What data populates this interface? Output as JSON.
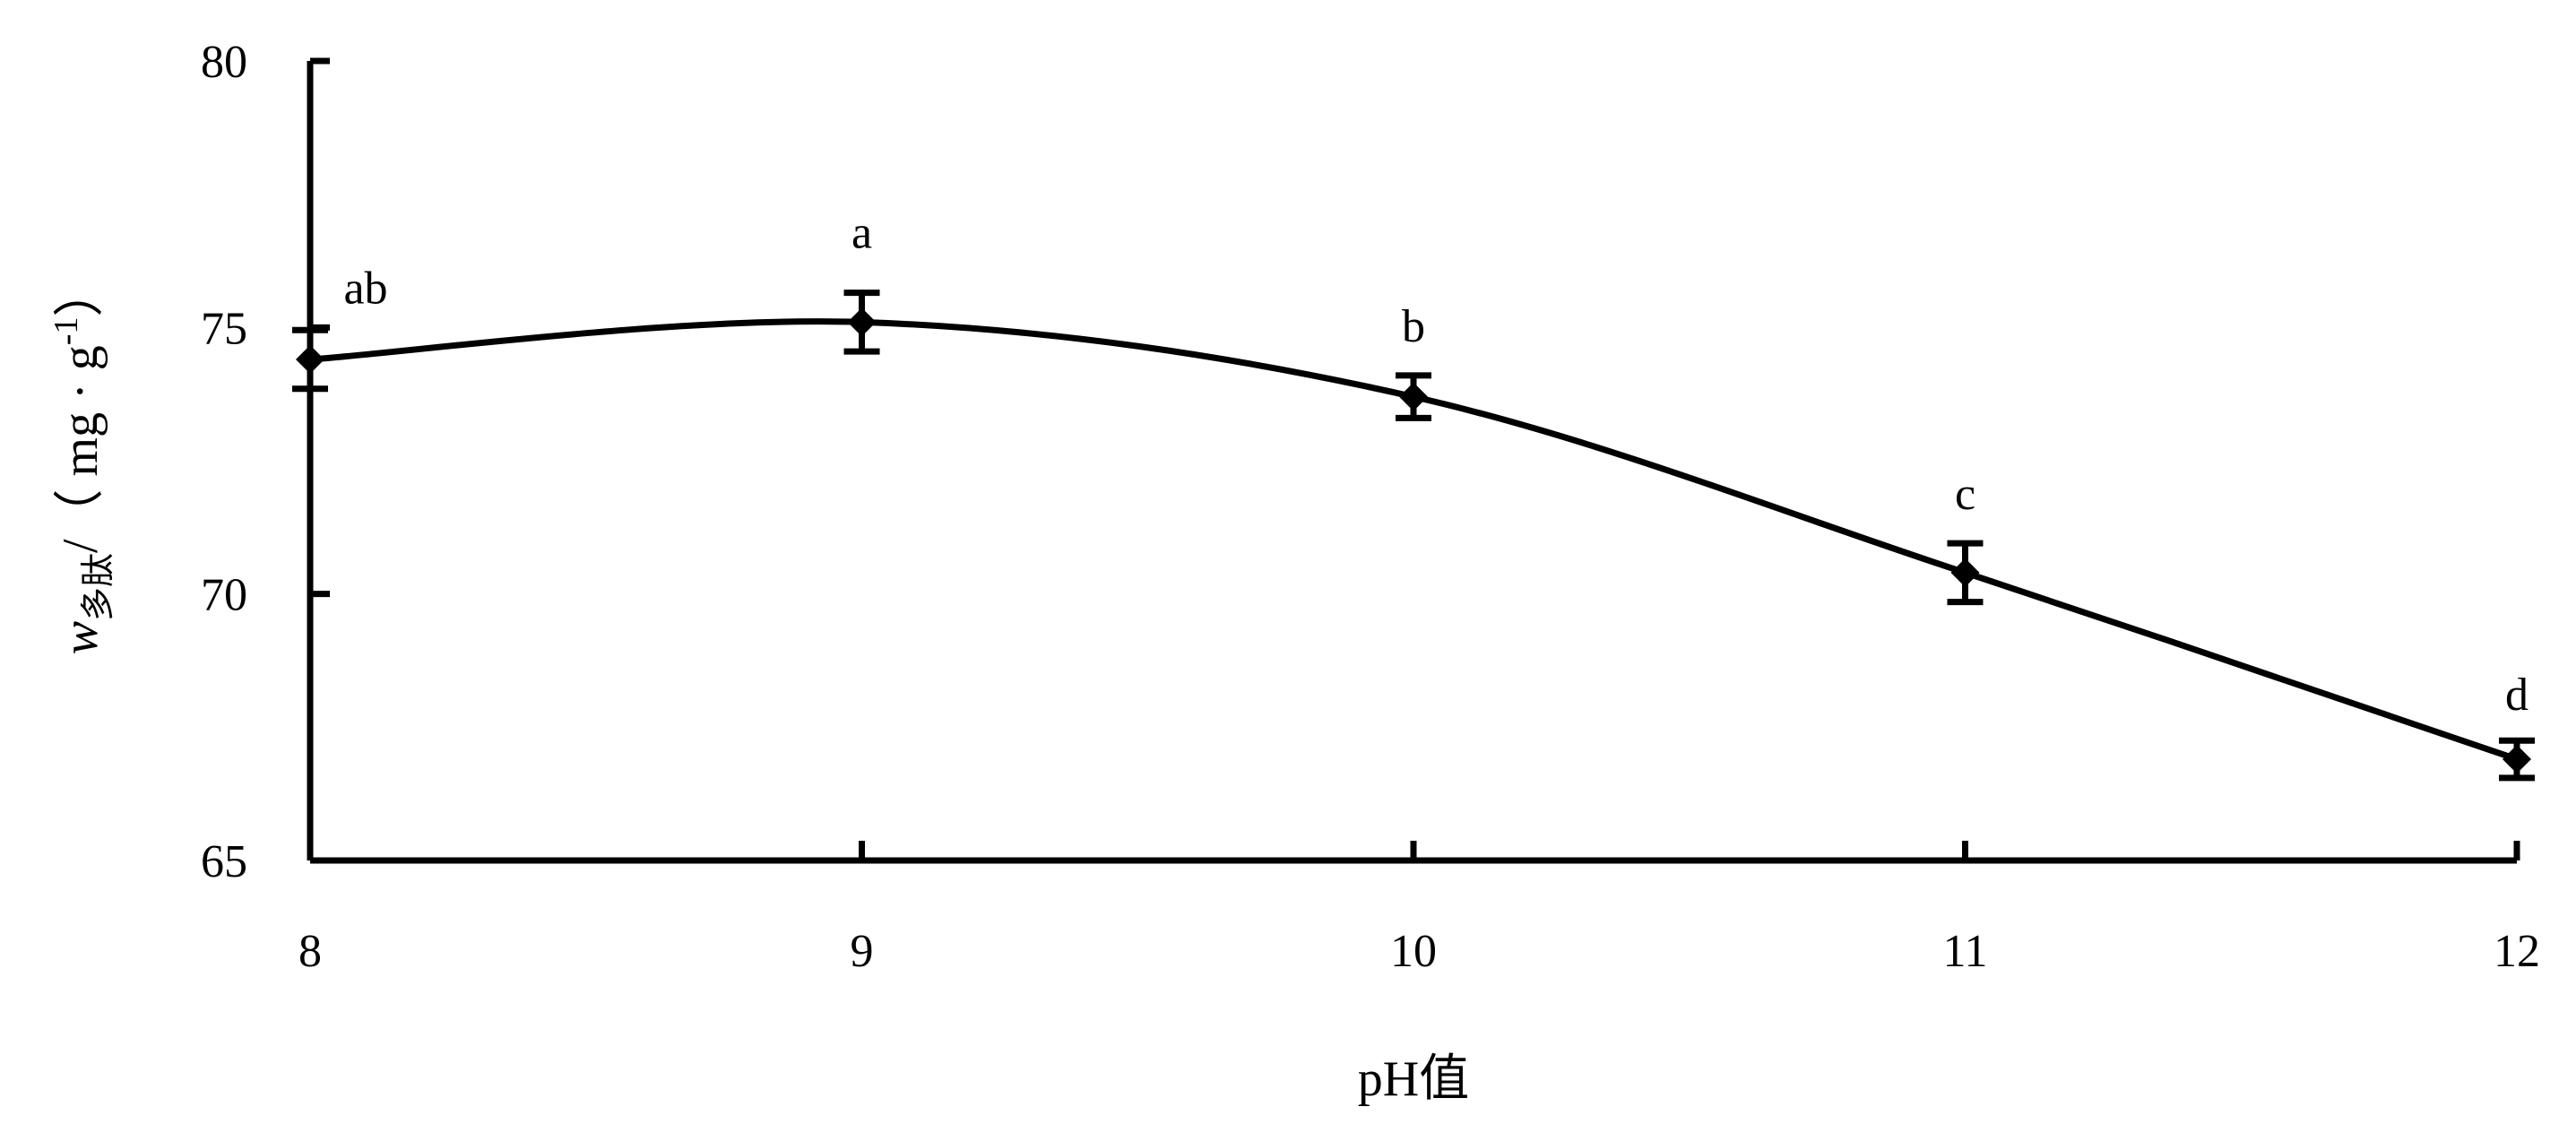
{
  "chart_data": {
    "type": "line",
    "title": "",
    "xlabel": "pH值",
    "ylabel": {
      "prefix": "w",
      "subscript": "多肽",
      "unit_text": "/（ mg · g",
      "superscript": "-1",
      "close": "）"
    },
    "x": [
      8,
      9,
      10,
      11,
      12
    ],
    "xlim": [
      8,
      12
    ],
    "ylim": [
      65,
      80
    ],
    "x_ticks": [
      "8",
      "9",
      "10",
      "11",
      "12"
    ],
    "y_ticks": [
      "65",
      "70",
      "75",
      "80"
    ],
    "y_tick_values": [
      65,
      70,
      75,
      80
    ],
    "series": [
      {
        "values": [
          74.4,
          75.1,
          73.7,
          70.4,
          66.9
        ],
        "errors": [
          0.55,
          0.55,
          0.4,
          0.55,
          0.35
        ],
        "labels": [
          "ab",
          "a",
          "b",
          "c",
          "d"
        ],
        "smooth": true,
        "marker": "diamond"
      }
    ],
    "grid": false,
    "legend": "none"
  }
}
